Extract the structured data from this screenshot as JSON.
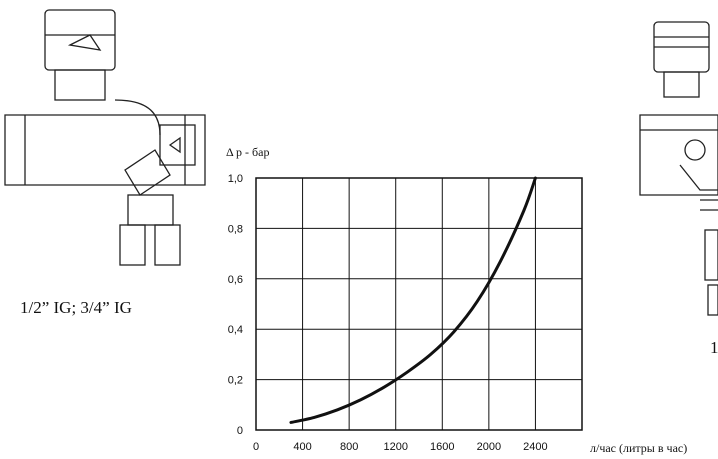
{
  "left_caption": "1/2” IG; 3/4” IG",
  "right_caption_fragment": "1",
  "chart_data": {
    "type": "line",
    "title": "",
    "ylabel": "Δ p - бар",
    "xlabel": "л/час (литры в час)",
    "xlim": [
      0,
      2800
    ],
    "ylim": [
      0,
      1.0
    ],
    "xticks": [
      0,
      400,
      800,
      1200,
      1600,
      2000,
      2400
    ],
    "xtick_labels": [
      "0",
      "400",
      "800",
      "1200",
      "1600",
      "2000",
      "2400"
    ],
    "yticks": [
      0,
      0.2,
      0.4,
      0.6,
      0.8,
      1.0
    ],
    "ytick_labels": [
      "0",
      "0,2",
      "0,4",
      "0,6",
      "0,8",
      "1,0"
    ],
    "grid": true,
    "series": [
      {
        "x": [
          300,
          500,
          700,
          900,
          1100,
          1300,
          1500,
          1700,
          1900,
          2100,
          2300,
          2400
        ],
        "y": [
          0.03,
          0.05,
          0.08,
          0.12,
          0.17,
          0.23,
          0.3,
          0.39,
          0.51,
          0.67,
          0.87,
          1.0
        ]
      }
    ]
  }
}
